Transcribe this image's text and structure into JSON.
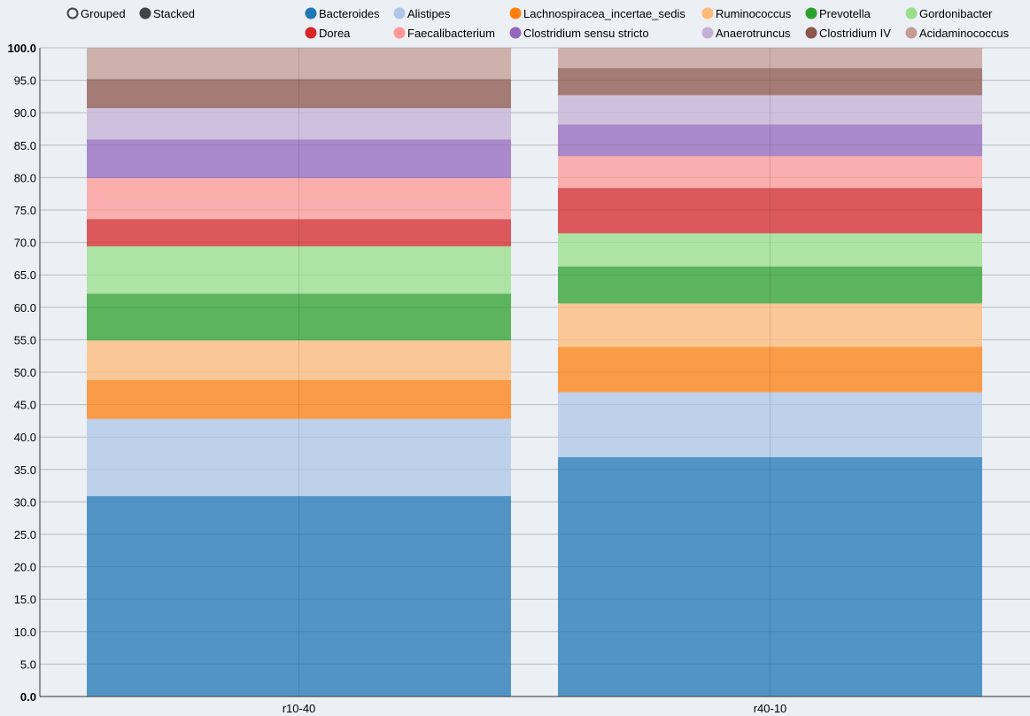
{
  "controls": [
    {
      "label": "Grouped",
      "selected": false
    },
    {
      "label": "Stacked",
      "selected": true
    }
  ],
  "chart_data": {
    "type": "bar",
    "stacked": true,
    "categories": [
      "r10-40",
      "r40-10"
    ],
    "ylim": [
      0,
      100
    ],
    "yticks": [
      "0.0",
      "5.0",
      "10.0",
      "15.0",
      "20.0",
      "25.0",
      "30.0",
      "35.0",
      "40.0",
      "45.0",
      "50.0",
      "55.0",
      "60.0",
      "65.0",
      "70.0",
      "75.0",
      "80.0",
      "85.0",
      "90.0",
      "95.0",
      "100.0"
    ],
    "grid": true,
    "legend_position": "top",
    "series": [
      {
        "name": "Bacteroides",
        "color": "#1f77b4",
        "values": [
          30.9,
          36.9
        ]
      },
      {
        "name": "Alistipes",
        "color": "#aec7e8",
        "values": [
          11.9,
          10.0
        ]
      },
      {
        "name": "Lachnospiracea_incertae_sedis",
        "color": "#ff7f0e",
        "values": [
          6.0,
          7.0
        ]
      },
      {
        "name": "Ruminococcus",
        "color": "#ffbb78",
        "values": [
          6.1,
          6.7
        ]
      },
      {
        "name": "Prevotella",
        "color": "#2ca02c",
        "values": [
          7.2,
          5.7
        ]
      },
      {
        "name": "Gordonibacter",
        "color": "#98df8a",
        "values": [
          7.3,
          5.1
        ]
      },
      {
        "name": "Dorea",
        "color": "#d62728",
        "values": [
          4.2,
          7.0
        ]
      },
      {
        "name": "Faecalibacterium",
        "color": "#ff9896",
        "values": [
          6.3,
          4.9
        ]
      },
      {
        "name": "Clostridium sensu stricto",
        "color": "#9467bd",
        "values": [
          6.0,
          4.9
        ]
      },
      {
        "name": "Anaerotruncus",
        "color": "#c5b0d5",
        "values": [
          4.8,
          4.5
        ]
      },
      {
        "name": "Clostridium IV",
        "color": "#8c564b",
        "values": [
          4.5,
          4.2
        ]
      },
      {
        "name": "Acidaminococcus",
        "color": "#c49c94",
        "values": [
          4.8,
          3.1
        ]
      }
    ]
  }
}
